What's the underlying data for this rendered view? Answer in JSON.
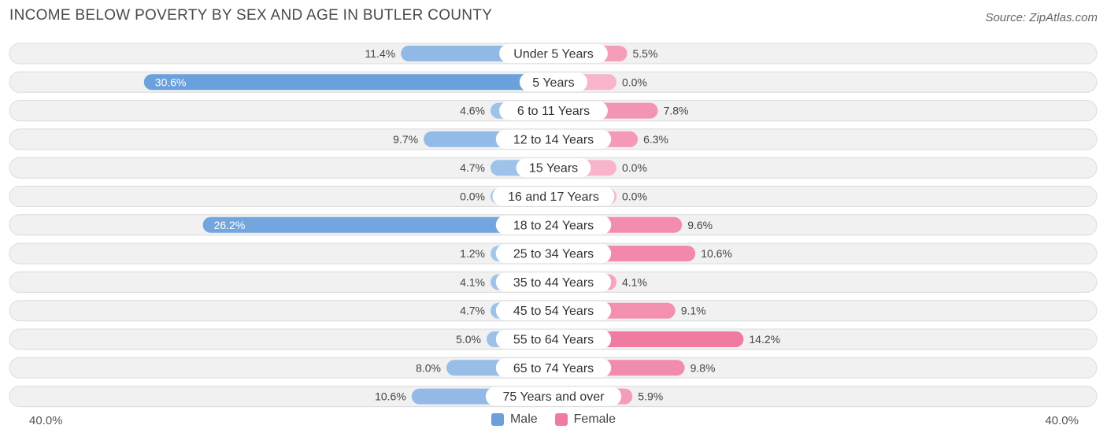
{
  "title": "INCOME BELOW POVERTY BY SEX AND AGE IN BUTLER COUNTY",
  "source": "Source: ZipAtlas.com",
  "axis": {
    "left_label": "40.0%",
    "right_label": "40.0%"
  },
  "legend": {
    "male_label": "Male",
    "female_label": "Female"
  },
  "colors": {
    "male_strong": "#6aa0dc",
    "male_light": "#a8c8ec",
    "female_strong": "#f07aa0",
    "female_light": "#f8b4ca",
    "row_bg": "#f1f1f1",
    "row_border": "#dcdcdc"
  },
  "chart_data": {
    "type": "bar",
    "orientation": "horizontal-diverging",
    "categories": [
      "Under 5 Years",
      "5 Years",
      "6 to 11 Years",
      "12 to 14 Years",
      "15 Years",
      "16 and 17 Years",
      "18 to 24 Years",
      "25 to 34 Years",
      "35 to 44 Years",
      "45 to 54 Years",
      "55 to 64 Years",
      "65 to 74 Years",
      "75 Years and over"
    ],
    "series": [
      {
        "name": "Male",
        "values": [
          11.4,
          30.6,
          4.6,
          9.7,
          4.7,
          0.0,
          26.2,
          1.2,
          4.1,
          4.7,
          5.0,
          8.0,
          10.6
        ],
        "labels": [
          "11.4%",
          "30.6%",
          "4.6%",
          "9.7%",
          "4.7%",
          "0.0%",
          "26.2%",
          "1.2%",
          "4.1%",
          "4.7%",
          "5.0%",
          "8.0%",
          "10.6%"
        ]
      },
      {
        "name": "Female",
        "values": [
          5.5,
          0.0,
          7.8,
          6.3,
          0.0,
          0.0,
          9.6,
          10.6,
          4.1,
          9.1,
          14.2,
          9.8,
          5.9
        ],
        "labels": [
          "5.5%",
          "0.0%",
          "7.8%",
          "6.3%",
          "0.0%",
          "0.0%",
          "9.6%",
          "10.6%",
          "4.1%",
          "9.1%",
          "14.2%",
          "9.8%",
          "5.9%"
        ]
      }
    ],
    "xlim": [
      -40,
      40
    ],
    "legend_position": "bottom-center"
  }
}
